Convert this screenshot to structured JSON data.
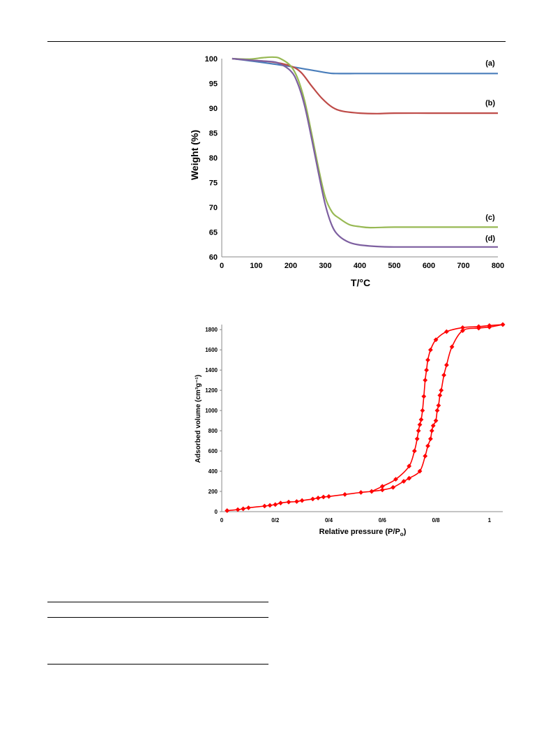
{
  "chart_data": [
    {
      "type": "line",
      "title": "",
      "xlabel": "T/°C",
      "ylabel": "Weight (%)",
      "xlim": [
        0,
        800
      ],
      "ylim": [
        60,
        100
      ],
      "xticks": [
        "0",
        "100",
        "200",
        "300",
        "400",
        "500",
        "600",
        "700",
        "800"
      ],
      "yticks": [
        "60",
        "65",
        "70",
        "75",
        "80",
        "85",
        "90",
        "95",
        "100"
      ],
      "grid": false,
      "series": [
        {
          "name": "(a)",
          "color": "#4a7ebb",
          "x": [
            30,
            100,
            200,
            300,
            330,
            400,
            500,
            600,
            700,
            800
          ],
          "y": [
            100,
            99.4,
            98.4,
            97.2,
            97.0,
            97.0,
            97.0,
            97.0,
            97.0,
            97.0
          ]
        },
        {
          "name": "(b)",
          "color": "#be4b48",
          "x": [
            30,
            100,
            150,
            200,
            230,
            260,
            290,
            320,
            350,
            400,
            450,
            500,
            600,
            700,
            800
          ],
          "y": [
            100,
            99.6,
            99.3,
            98.5,
            97.2,
            94.5,
            92.0,
            90.2,
            89.4,
            89.0,
            88.9,
            89.0,
            89.0,
            89.0,
            89.0
          ]
        },
        {
          "name": "(c)",
          "color": "#98b954",
          "x": [
            30,
            80,
            120,
            150,
            170,
            200,
            220,
            240,
            260,
            280,
            300,
            320,
            340,
            370,
            400,
            430,
            500,
            600,
            700,
            800
          ],
          "y": [
            100,
            99.9,
            100.2,
            100.3,
            100.0,
            98.5,
            96.0,
            91.5,
            85.0,
            78.0,
            72.0,
            69.0,
            67.8,
            66.5,
            66.1,
            65.9,
            66.0,
            66.0,
            66.0,
            66.0
          ]
        },
        {
          "name": "(d)",
          "color": "#7d5fa0",
          "x": [
            30,
            80,
            120,
            160,
            200,
            220,
            240,
            260,
            280,
            300,
            320,
            340,
            370,
            400,
            450,
            500,
            600,
            700,
            800
          ],
          "y": [
            100,
            99.7,
            99.5,
            99.2,
            97.5,
            95.0,
            90.5,
            84.0,
            77.0,
            70.5,
            66.2,
            64.2,
            62.9,
            62.4,
            62.1,
            62.0,
            62.0,
            62.0,
            62.0
          ]
        }
      ]
    },
    {
      "type": "line",
      "title": "",
      "xlabel": "Relative pressure (P/P",
      "xlabel_sub": "o",
      "xlabel_end": ")",
      "ylabel": "Adsorbed volume (cm³g⁻¹)",
      "xlim": [
        0,
        1.05
      ],
      "ylim": [
        0,
        1850
      ],
      "xticks": [
        {
          "v": 0,
          "label": "0"
        },
        {
          "v": 0.2,
          "label": "0/2"
        },
        {
          "v": 0.4,
          "label": "0/4"
        },
        {
          "v": 0.6,
          "label": "0/6"
        },
        {
          "v": 0.8,
          "label": "0/8"
        },
        {
          "v": 1.0,
          "label": "1"
        }
      ],
      "yticks": [
        0,
        200,
        400,
        600,
        800,
        1000,
        1200,
        1400,
        1600,
        1800
      ],
      "grid": false,
      "series": [
        {
          "name": "",
          "color": "#ff0000",
          "x": [
            0.02,
            0.06,
            0.08,
            0.1,
            0.16,
            0.18,
            0.2,
            0.22,
            0.25,
            0.28,
            0.3,
            0.34,
            0.36,
            0.38,
            0.4,
            0.46,
            0.52,
            0.56,
            0.6,
            0.64,
            0.68,
            0.7,
            0.74,
            0.76,
            0.77,
            0.78,
            0.785,
            0.79,
            0.8,
            0.805,
            0.81,
            0.815,
            0.82,
            0.83,
            0.84,
            0.86,
            0.9,
            0.96,
            1.0,
            1.05
          ],
          "y": [
            10,
            20,
            28,
            38,
            55,
            62,
            70,
            85,
            95,
            100,
            110,
            125,
            135,
            145,
            150,
            170,
            190,
            200,
            215,
            240,
            300,
            330,
            400,
            550,
            650,
            720,
            800,
            850,
            900,
            1000,
            1050,
            1150,
            1200,
            1350,
            1450,
            1630,
            1790,
            1815,
            1825,
            1850
          ]
        },
        {
          "name": "",
          "color": "#ff0000",
          "x": [
            0.56,
            0.6,
            0.65,
            0.7,
            0.72,
            0.73,
            0.735,
            0.74,
            0.745,
            0.75,
            0.755,
            0.76,
            0.765,
            0.77,
            0.78,
            0.8,
            0.84,
            0.9,
            0.96,
            1.0,
            1.05
          ],
          "y": [
            200,
            250,
            320,
            450,
            600,
            720,
            800,
            860,
            910,
            1000,
            1140,
            1300,
            1400,
            1500,
            1600,
            1700,
            1780,
            1820,
            1830,
            1840,
            1850
          ]
        }
      ]
    }
  ]
}
